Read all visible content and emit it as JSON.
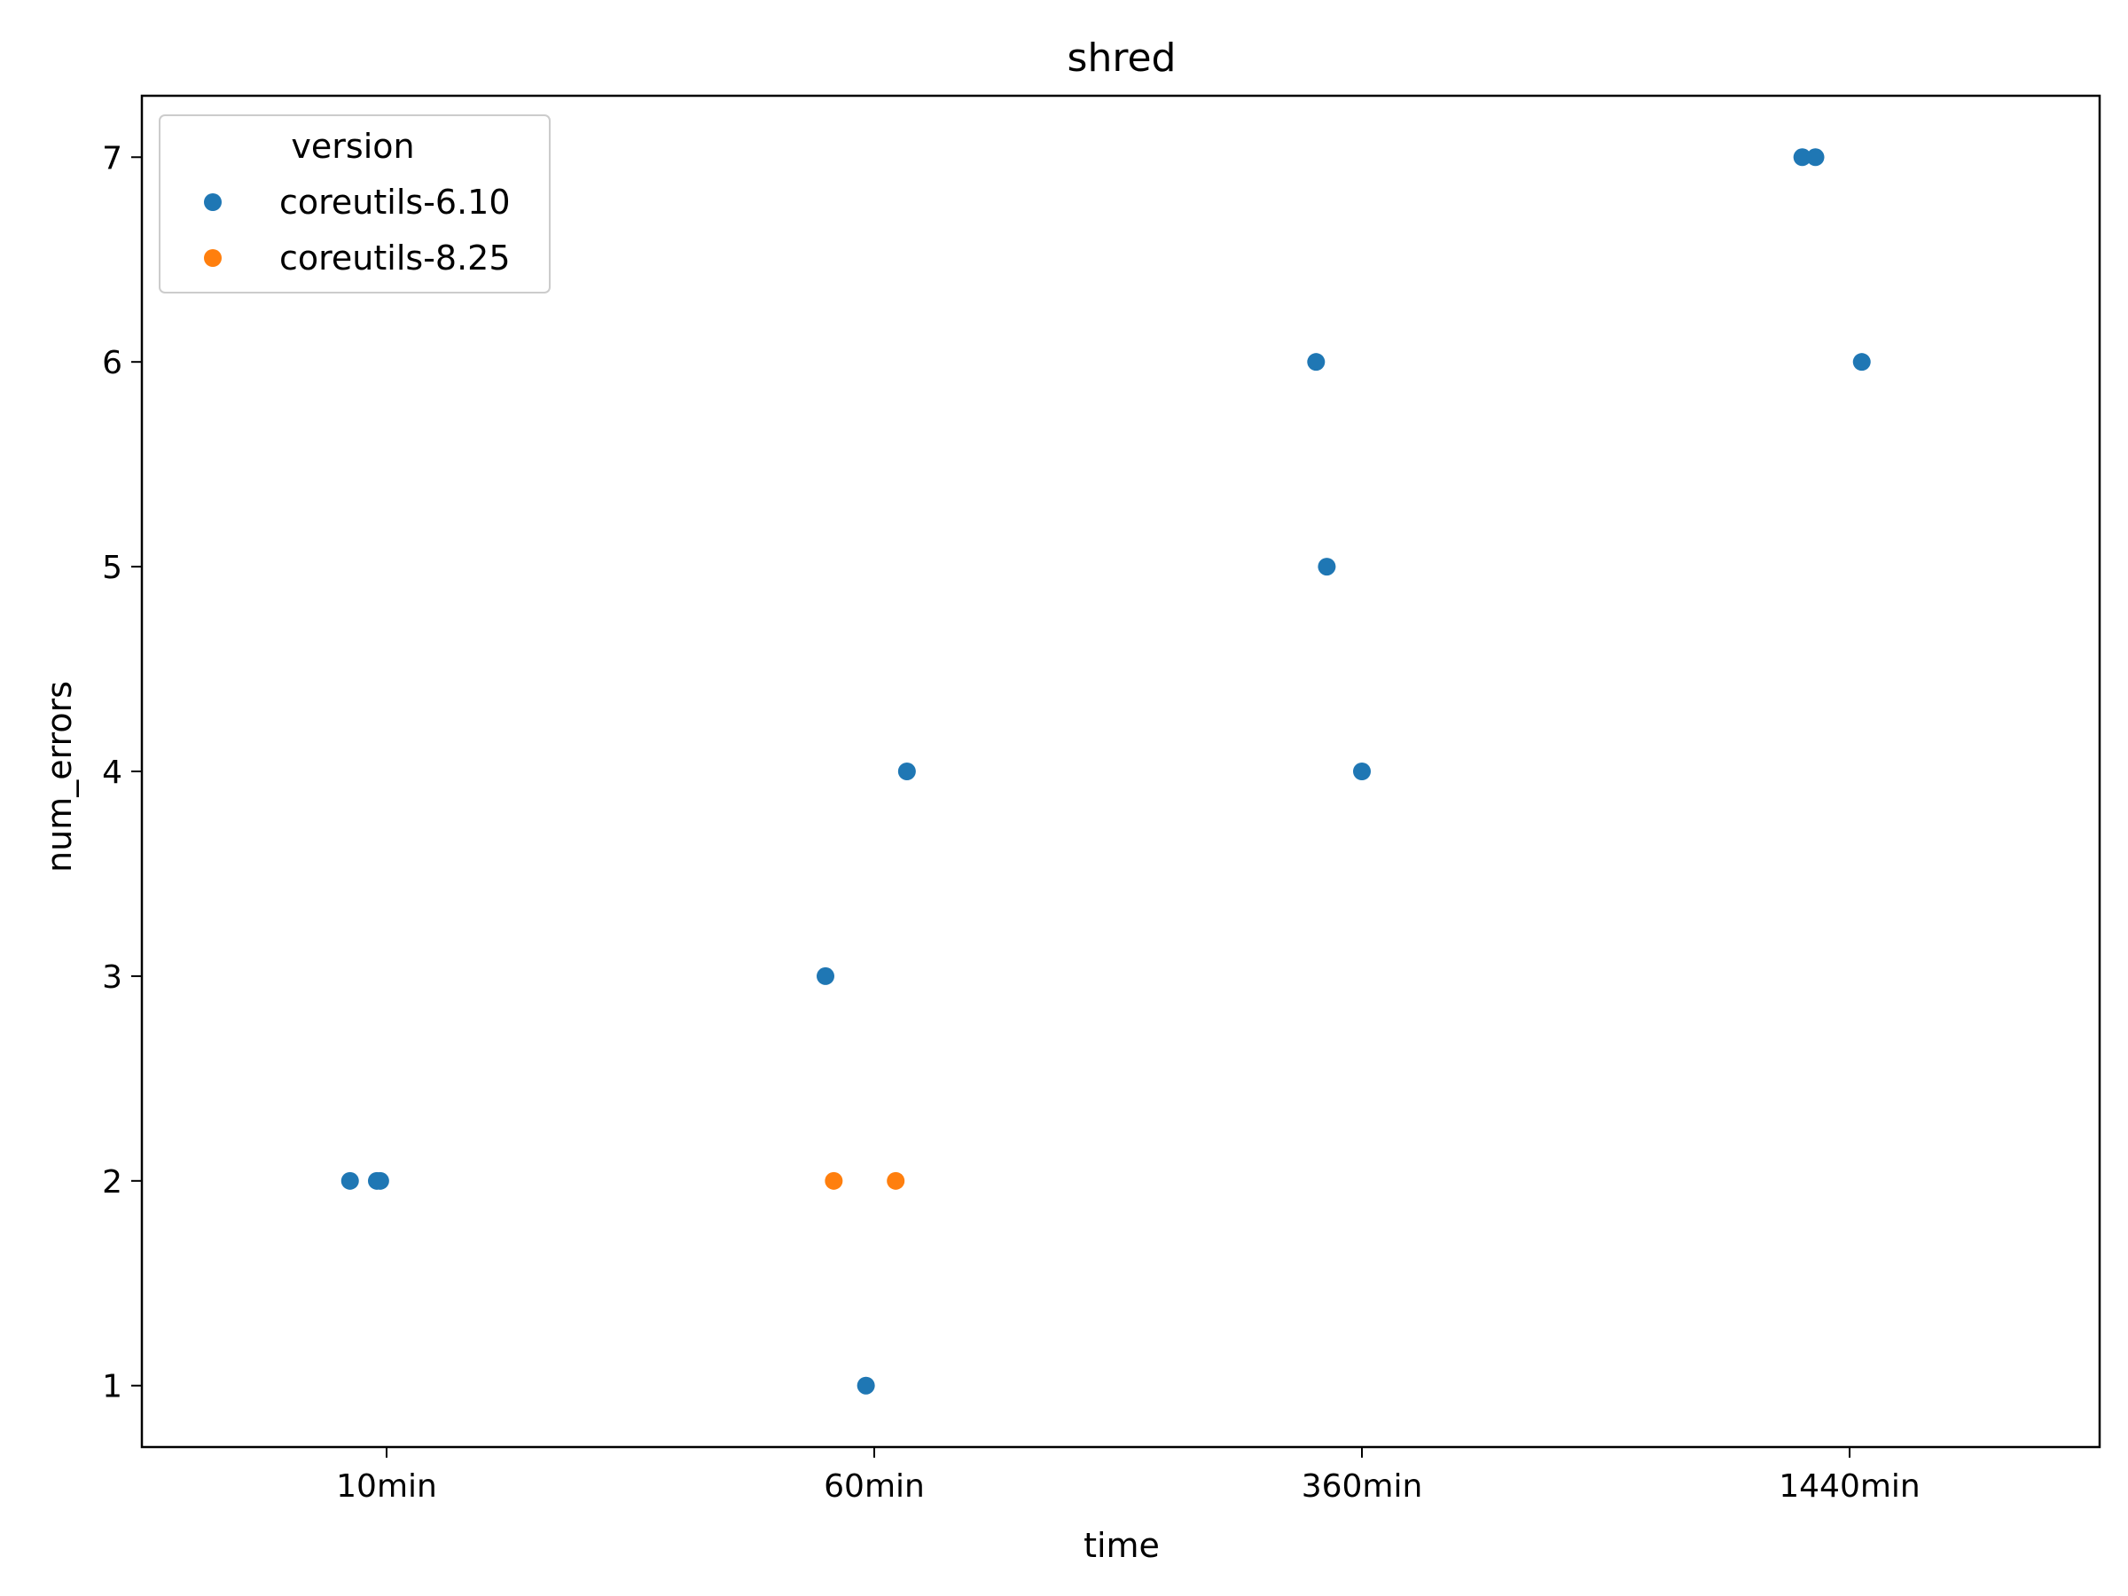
{
  "chart_data": {
    "type": "scatter",
    "title": "shred",
    "xlabel": "time",
    "ylabel": "num_errors",
    "categories": [
      "10min",
      "60min",
      "360min",
      "1440min"
    ],
    "yticks": [
      1,
      2,
      3,
      4,
      5,
      6,
      7
    ],
    "ylim": [
      0.7,
      7.3
    ],
    "grid": false,
    "legend": {
      "title": "version",
      "placement": "top-left"
    },
    "series": [
      {
        "name": "coreutils-6.10",
        "color": "#1f77b4",
        "points": [
          {
            "x": "10min",
            "jitter": -0.075,
            "y": 2
          },
          {
            "x": "10min",
            "jitter": -0.02,
            "y": 2
          },
          {
            "x": "10min",
            "jitter": -0.013,
            "y": 2
          },
          {
            "x": "60min",
            "jitter": -0.1,
            "y": 3
          },
          {
            "x": "60min",
            "jitter": -0.017,
            "y": 1
          },
          {
            "x": "60min",
            "jitter": 0.067,
            "y": 4
          },
          {
            "x": "360min",
            "jitter": -0.094,
            "y": 6
          },
          {
            "x": "360min",
            "jitter": -0.072,
            "y": 5
          },
          {
            "x": "360min",
            "jitter": 0.0,
            "y": 4
          },
          {
            "x": "1440min",
            "jitter": -0.097,
            "y": 7
          },
          {
            "x": "1440min",
            "jitter": -0.07,
            "y": 7
          },
          {
            "x": "1440min",
            "jitter": 0.025,
            "y": 6
          }
        ]
      },
      {
        "name": "coreutils-8.25",
        "color": "#ff7f0e",
        "points": [
          {
            "x": "60min",
            "jitter": -0.083,
            "y": 2
          },
          {
            "x": "60min",
            "jitter": 0.044,
            "y": 2
          }
        ]
      }
    ]
  }
}
